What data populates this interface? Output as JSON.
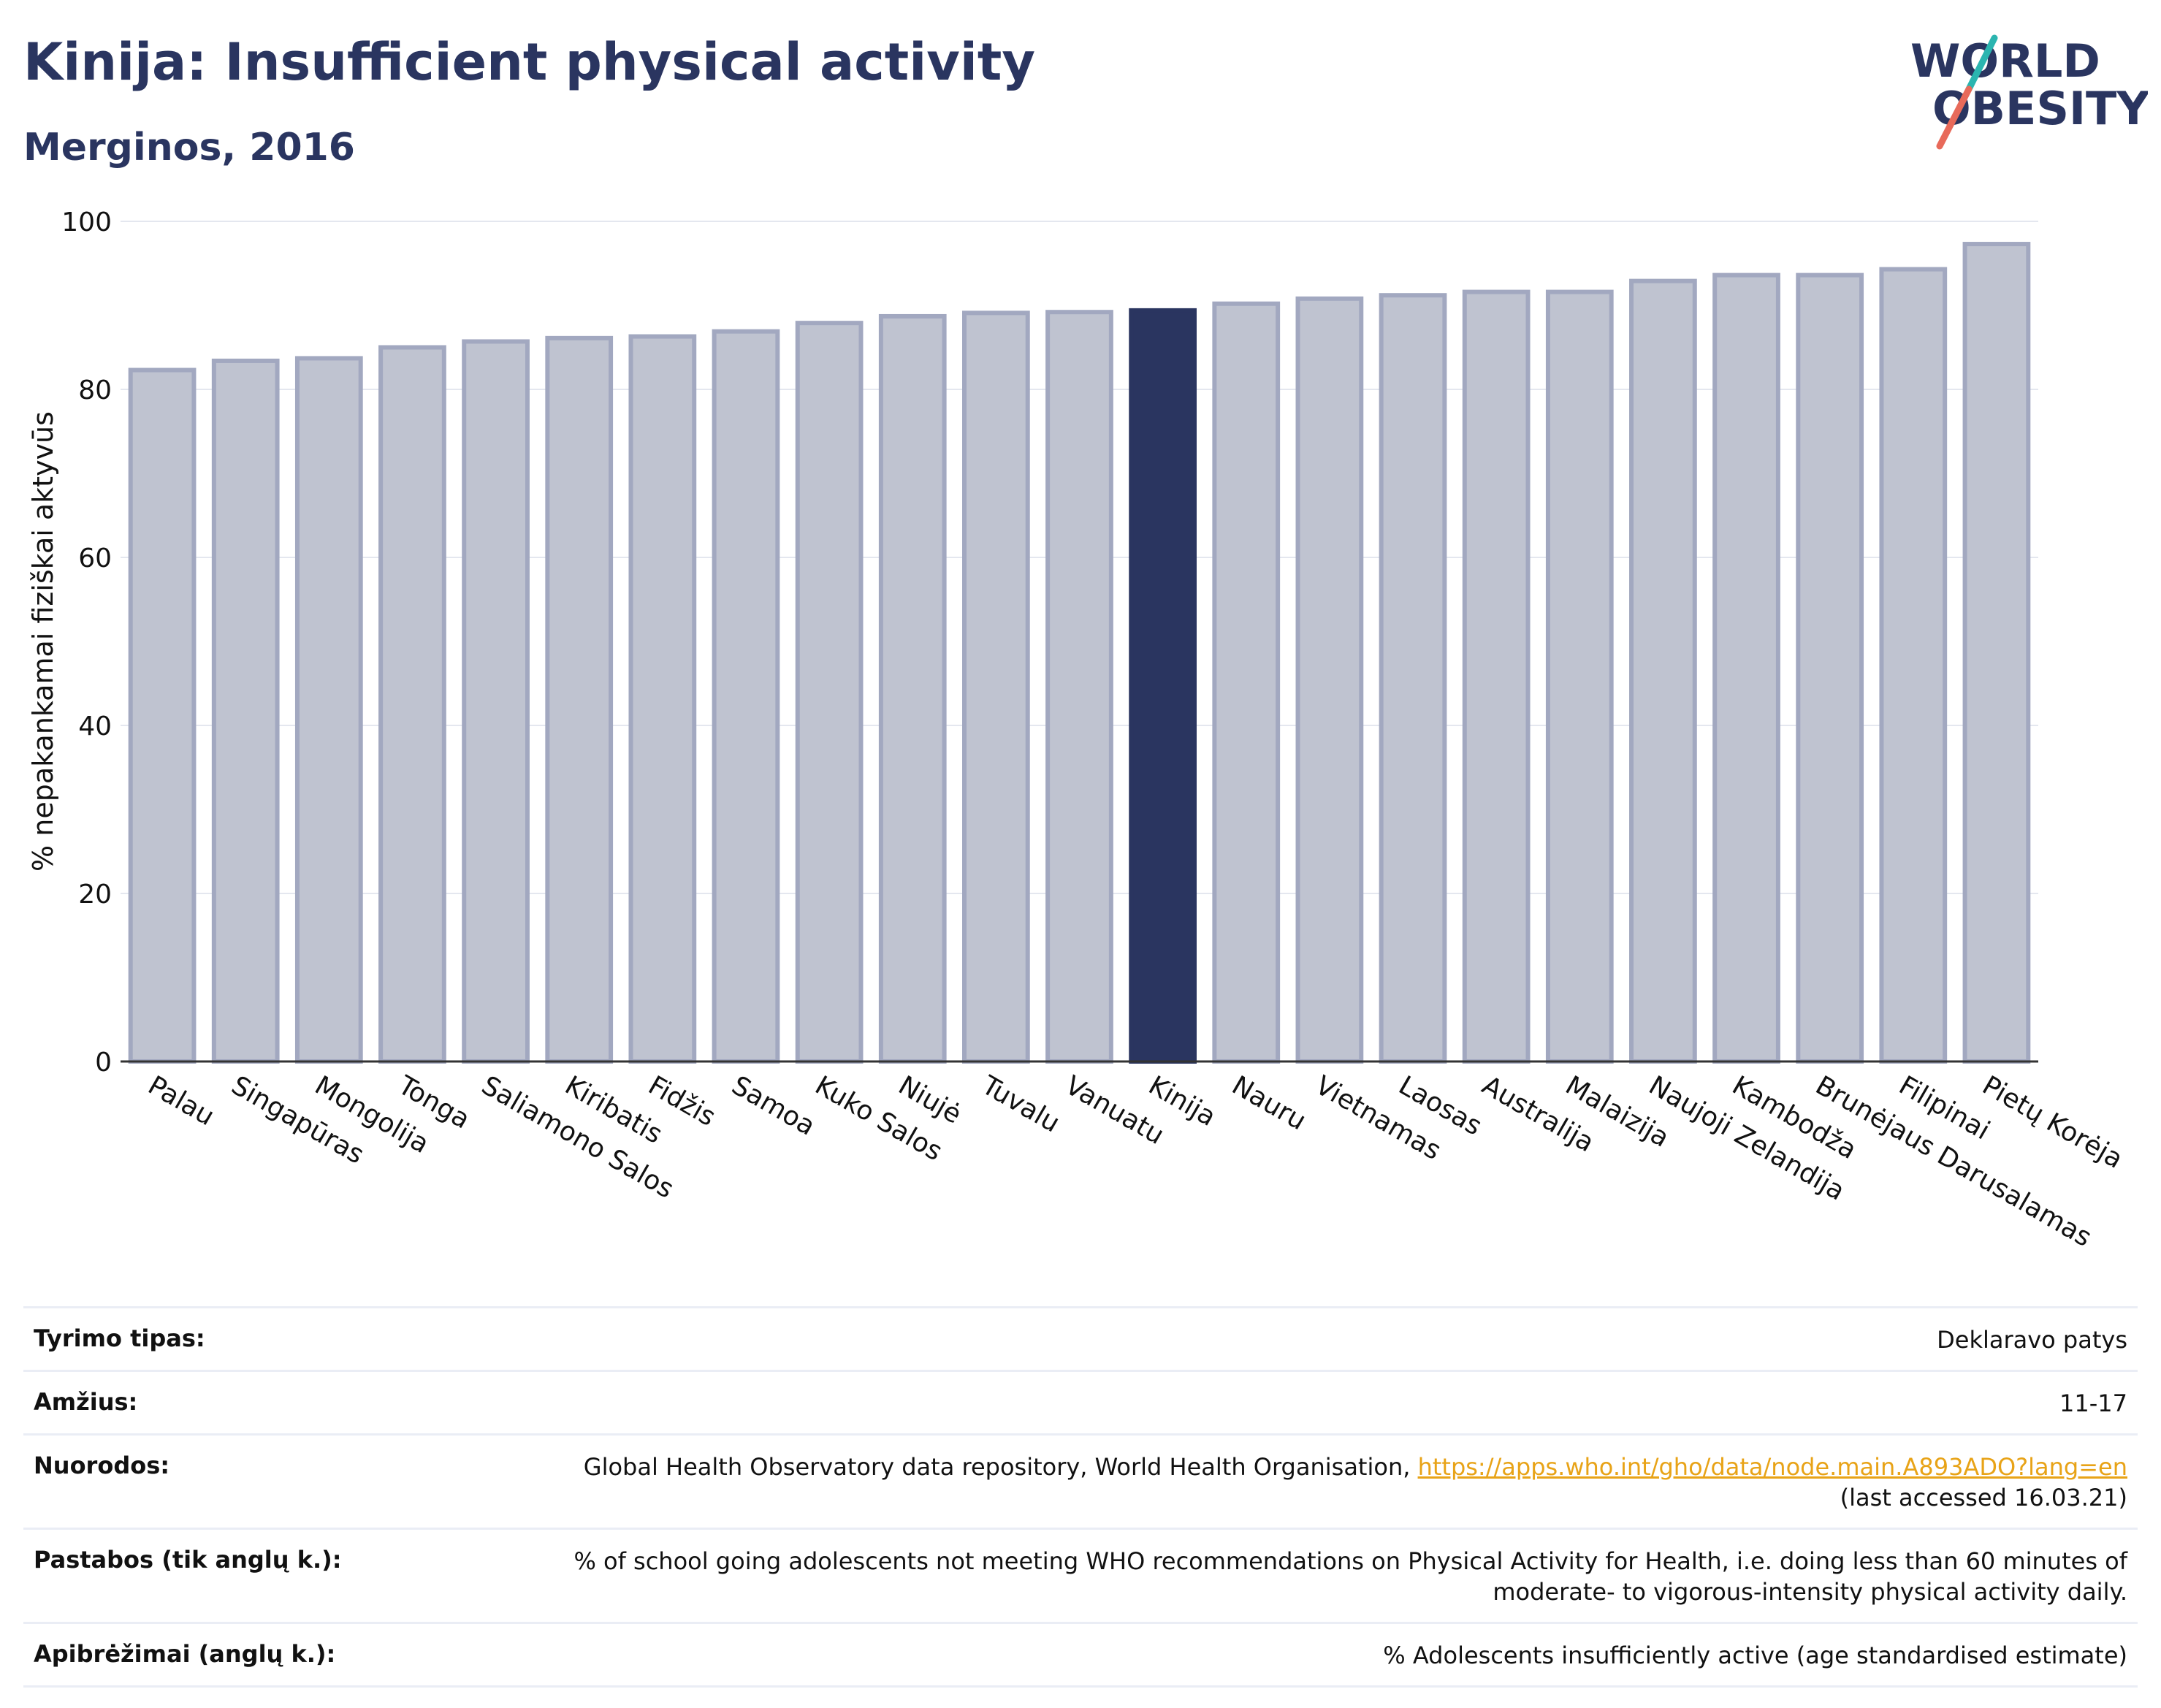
{
  "header": {
    "title": "Kinija: Insufficient physical activity",
    "subtitle": "Merginos, 2016"
  },
  "logo": {
    "line1": "WORLD",
    "line2": "OBESITY"
  },
  "colors": {
    "highlight": "#2a3560",
    "bar": "#bfc3d0",
    "bar_stroke": "#a2a8c0",
    "link": "#e8a317"
  },
  "chart_data": {
    "type": "bar",
    "ylabel": "% nepakankamai fiziškai aktyvūs",
    "ylim": [
      0,
      100
    ],
    "yticks": [
      0,
      20,
      40,
      60,
      80,
      100
    ],
    "grid": true,
    "highlight": "Kinija",
    "categories": [
      "Palau",
      "Singapūras",
      "Mongolija",
      "Tonga",
      "Saliamono Salos",
      "Kiribatis",
      "Fidžis",
      "Samoa",
      "Kuko Salos",
      "Niujė",
      "Tuvalu",
      "Vanuatu",
      "Kinija",
      "Nauru",
      "Vietnamas",
      "Laosas",
      "Australija",
      "Malaizija",
      "Naujoji Zelandija",
      "Kambodža",
      "Brunėjaus Darusalamas",
      "Filipinai",
      "Pietų Korėja"
    ],
    "values": [
      82.3,
      83.4,
      83.7,
      85.0,
      85.7,
      86.1,
      86.3,
      86.9,
      87.9,
      88.7,
      89.1,
      89.2,
      89.4,
      90.2,
      90.8,
      91.2,
      91.6,
      91.6,
      92.9,
      93.6,
      93.6,
      94.3,
      97.3
    ]
  },
  "info": {
    "rows": [
      {
        "label": "Tyrimo tipas:",
        "value": "Deklaravo patys"
      },
      {
        "label": "Amžius:",
        "value": "11-17"
      },
      {
        "label": "Nuorodos:",
        "value": "Global Health Observatory data repository, World Health Organisation,",
        "link": "https://apps.who.int/gho/data/node.main.A893ADO?lang=en",
        "value2": "(last accessed 16.03.21)"
      },
      {
        "label": "Pastabos (tik anglų k.):",
        "value": "% of school going adolescents not meeting WHO recommendations on Physical Activity for Health, i.e. doing less than 60 minutes of moderate- to vigorous-intensity physical activity daily."
      },
      {
        "label": "Apibrėžimai (anglų k.):",
        "value": "% Adolescents insufficiently active (age standardised estimate)"
      }
    ]
  }
}
